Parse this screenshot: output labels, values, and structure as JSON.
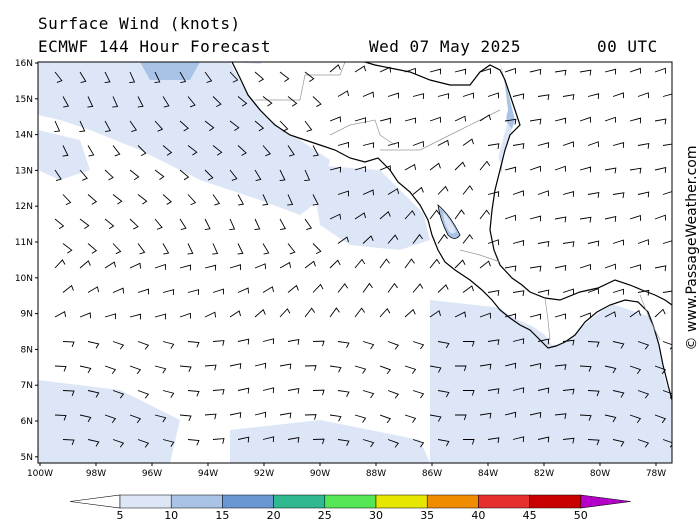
{
  "header": {
    "title": "Surface Wind (knots)",
    "model": "ECMWF 144 Hour Forecast",
    "date": "Wed 07 May 2025",
    "time": "00 UTC"
  },
  "map": {
    "lat_labels": [
      "16N",
      "15N",
      "14N",
      "13N",
      "12N",
      "11N",
      "10N",
      "9N",
      "8N",
      "7N",
      "6N",
      "5N"
    ],
    "lon_labels": [
      "100W",
      "98W",
      "96W",
      "94W",
      "92W",
      "90W",
      "88W",
      "86W",
      "84W",
      "82W",
      "80W",
      "78W"
    ],
    "lat_range": [
      5,
      16
    ],
    "lon_range": [
      -100,
      -78
    ],
    "land_color": "#ffffff",
    "coast_color": "#000000"
  },
  "wind_legend": {
    "ticks": [
      "5",
      "10",
      "15",
      "20",
      "25",
      "30",
      "35",
      "40",
      "45",
      "50"
    ],
    "colors": [
      "#ffffff",
      "#dce6f6",
      "#a8c3e6",
      "#6a96d2",
      "#30b890",
      "#55e655",
      "#e6e600",
      "#f08c00",
      "#e63030",
      "#c80000",
      "#b400c8"
    ]
  },
  "credit": "© www.PassageWeather.com"
}
